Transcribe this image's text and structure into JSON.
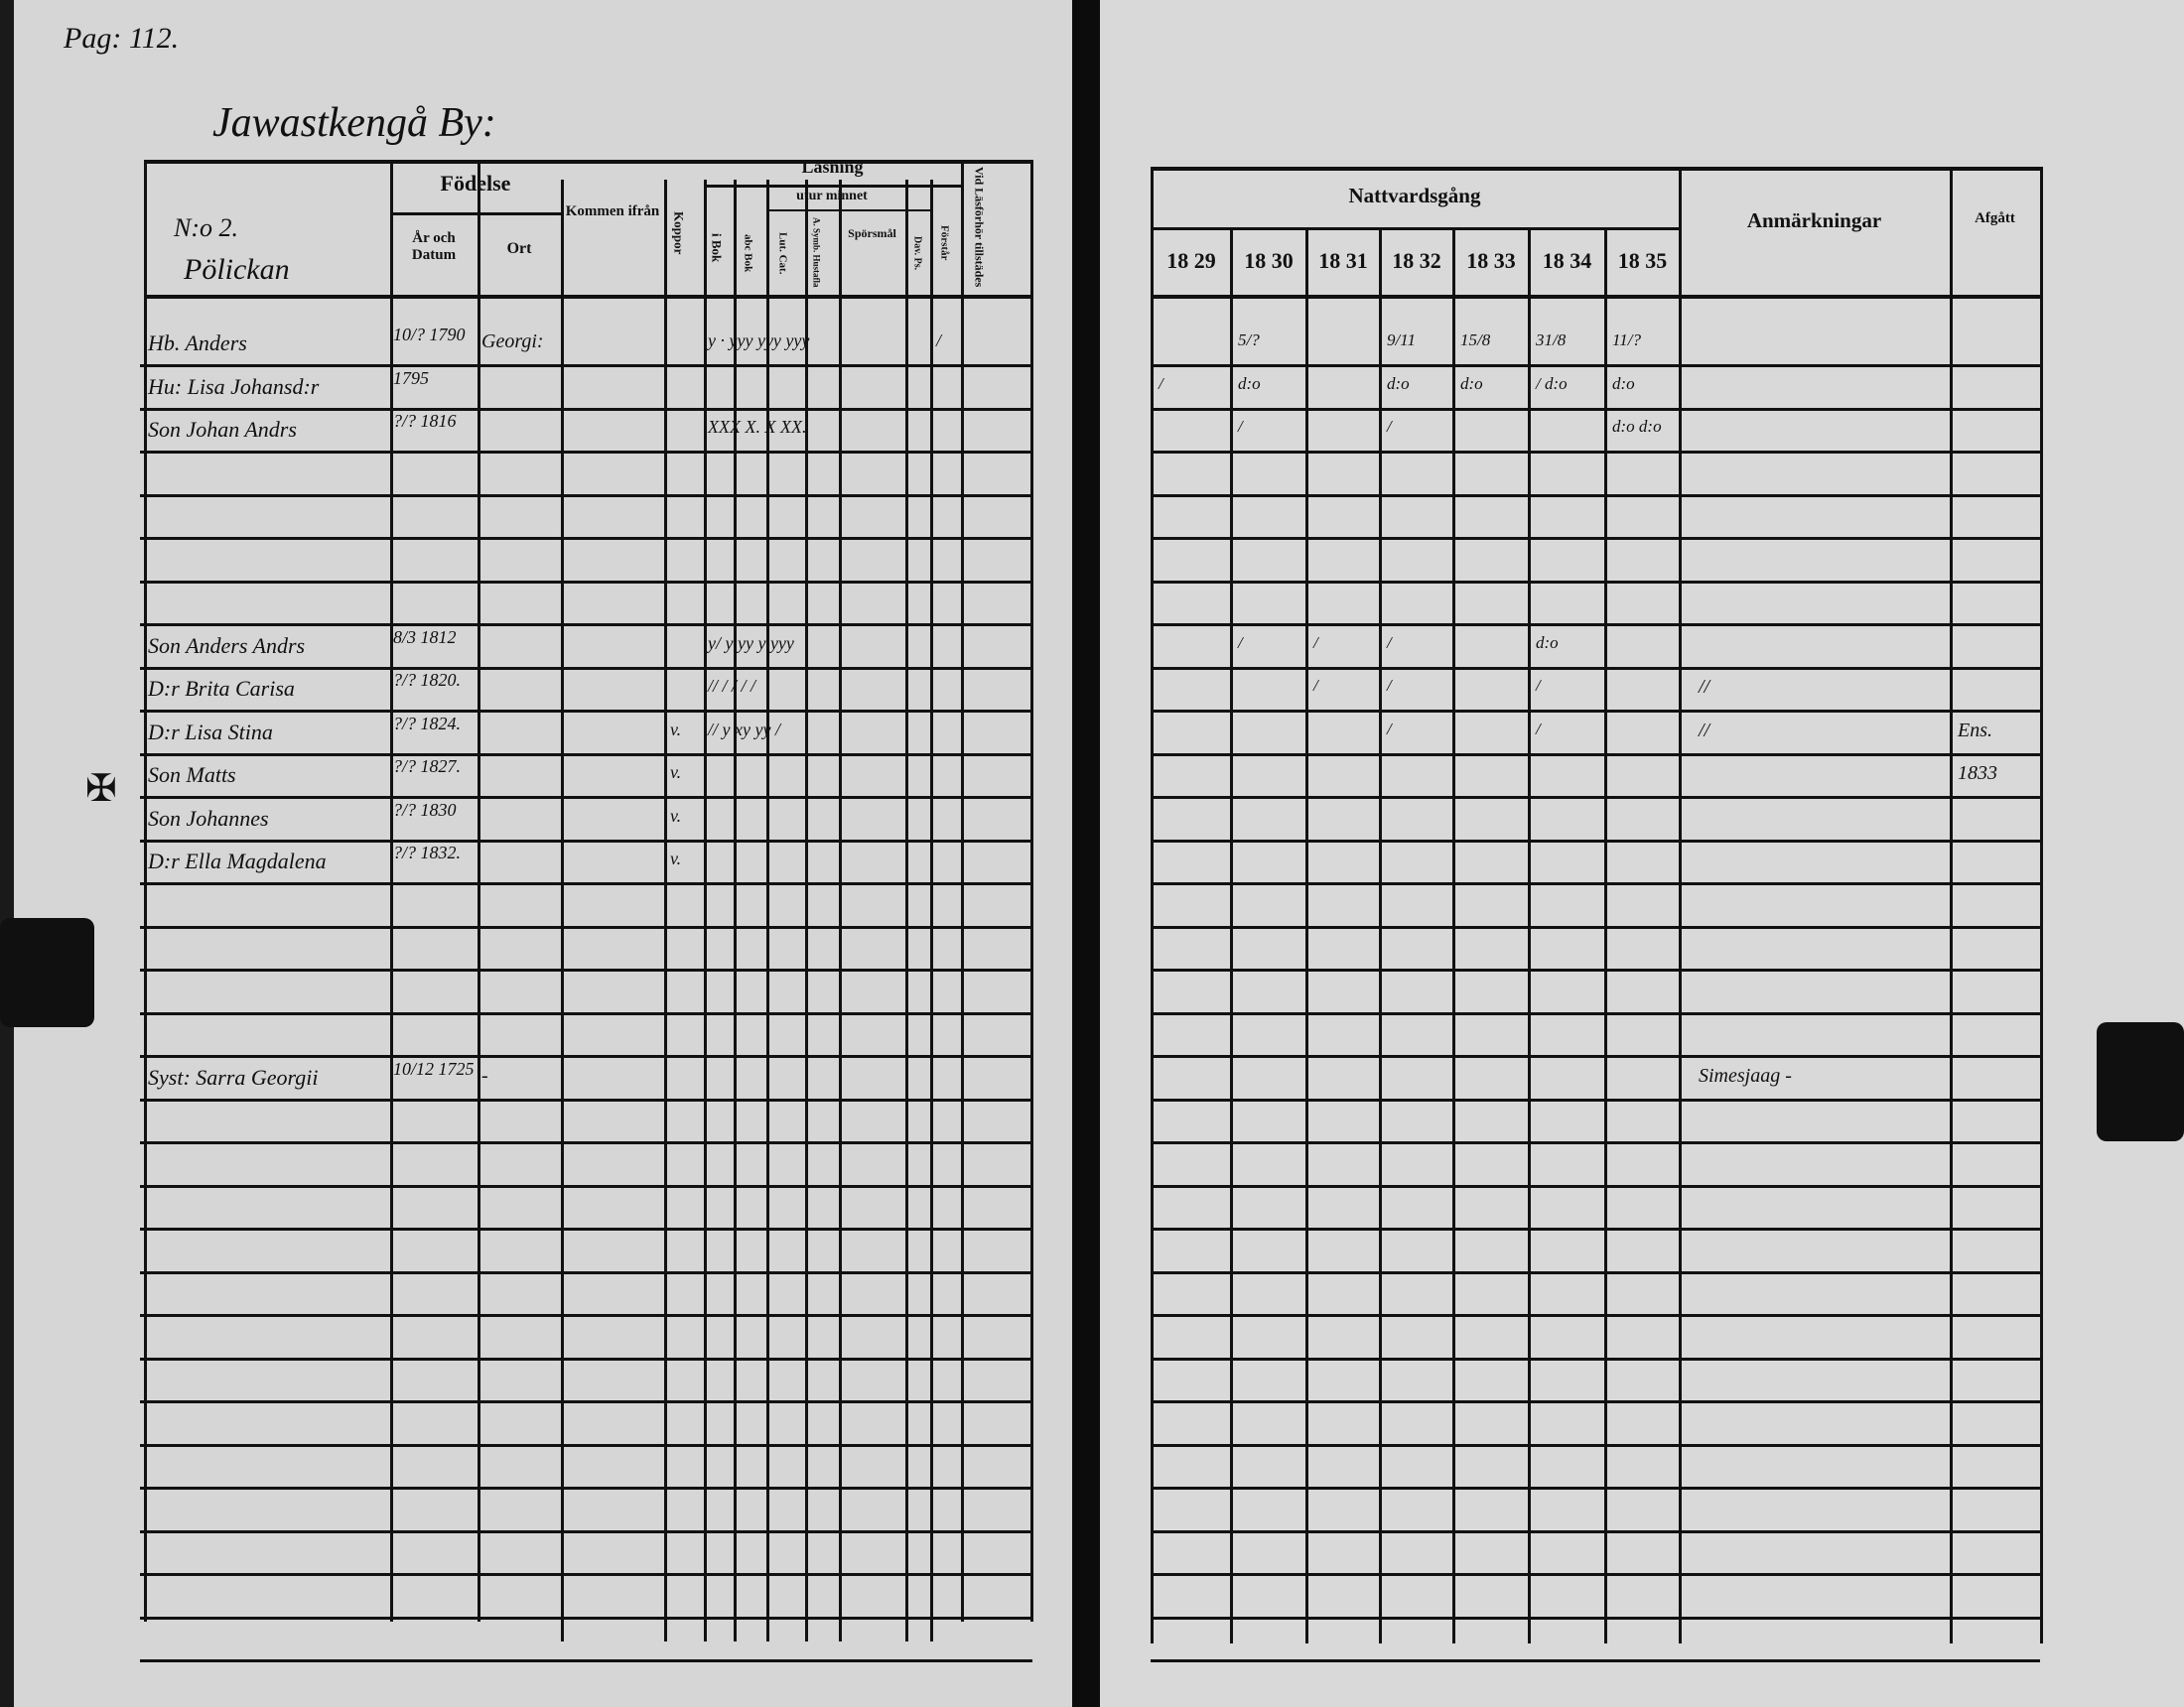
{
  "left_page": {
    "page_number": "Pag: 112.",
    "village_title": "Jawastkengå By:",
    "headers": {
      "names": [
        "N:o 2.",
        "Pölickan"
      ],
      "birth": "Födelse",
      "birth_date": "År och Datum",
      "birth_place": "Ort",
      "came_from": "Kommen ifrån",
      "smallpox": "Koppor",
      "reading": "Läsning",
      "by_heart": "utur minnet",
      "in_book": "i Bok",
      "abc_book": "abc Bok",
      "lut_cat": "Lut. Cat.",
      "symb": "A. Symb. Hustafla",
      "questions": "Spörsmål",
      "psalms": "Dav. Ps.",
      "understands": "Förstår",
      "attendance": "Vid Läsförhör tillstädes"
    },
    "margin_cross": "✠",
    "entries": [
      {
        "row": 0,
        "name": "Hb. Anders",
        "birth": "10/? 1790",
        "place": "Georgi:",
        "koppor": "",
        "reading": "y  ·  yyy yyy  yyy",
        "attendance": "/"
      },
      {
        "row": 1,
        "name": "Hu: Lisa Johansd:r",
        "birth": "1795",
        "place": "",
        "koppor": "",
        "reading": "",
        "attendance": ""
      },
      {
        "row": 2,
        "name": "Son Johan Andrs",
        "birth": "?/? 1816",
        "place": "",
        "koppor": "",
        "reading": "XXX  X.  X  XX.",
        "attendance": ""
      },
      {
        "row": 7,
        "name": "Son Anders Andrs",
        "birth": "8/3 1812",
        "place": "",
        "koppor": "",
        "reading": "y/  y  yy  y  yyy",
        "attendance": ""
      },
      {
        "row": 8,
        "name": "D:r Brita Carisa",
        "birth": "?/? 1820.",
        "place": "",
        "koppor": "",
        "reading": "//  / /  / /",
        "attendance": ""
      },
      {
        "row": 9,
        "name": "D:r Lisa Stina",
        "birth": "?/? 1824.",
        "place": "",
        "koppor": "v.",
        "reading": "//  y  xy  yy /",
        "attendance": ""
      },
      {
        "row": 10,
        "name": "Son Matts",
        "birth": "?/? 1827.",
        "place": "",
        "koppor": "v.",
        "reading": "",
        "attendance": ""
      },
      {
        "row": 11,
        "name": "Son Johannes",
        "birth": "?/? 1830",
        "place": "",
        "koppor": "v.",
        "reading": "",
        "attendance": ""
      },
      {
        "row": 12,
        "name": "D:r Ella Magdalena",
        "birth": "?/? 1832.",
        "place": "",
        "koppor": "v.",
        "reading": "",
        "attendance": ""
      },
      {
        "row": 17,
        "name": "Syst: Sarra Georgii",
        "birth": "10/12 1725",
        "place": "-",
        "koppor": "",
        "reading": "",
        "attendance": ""
      }
    ]
  },
  "right_page": {
    "headers": {
      "communion": "Nattvardsgång",
      "years": [
        "18 29",
        "18 30",
        "18 31",
        "18 32",
        "18 33",
        "18 34",
        "18 35"
      ],
      "remarks": "Anmärkningar",
      "departed": "Afgått"
    },
    "entries": [
      {
        "row": 0,
        "years": [
          "",
          "5/?",
          "",
          "9/11",
          "15/8",
          "31/8",
          "11/?"
        ],
        "remarks": "",
        "departed": ""
      },
      {
        "row": 1,
        "years": [
          "/",
          "d:o",
          "",
          "d:o",
          "d:o",
          "/ d:o",
          "d:o"
        ],
        "remarks": "",
        "departed": ""
      },
      {
        "row": 2,
        "years": [
          "",
          "/",
          "",
          "/",
          "",
          "",
          "d:o d:o"
        ],
        "remarks": "",
        "departed": ""
      },
      {
        "row": 7,
        "years": [
          "",
          "/",
          "/",
          "/",
          "",
          "d:o",
          ""
        ],
        "remarks": "",
        "departed": ""
      },
      {
        "row": 8,
        "years": [
          "",
          "",
          "/",
          "/",
          "",
          "/",
          ""
        ],
        "remarks": "//",
        "departed": ""
      },
      {
        "row": 9,
        "years": [
          "",
          "",
          "",
          "/",
          "",
          "/",
          ""
        ],
        "remarks": "//",
        "departed": "Ens."
      },
      {
        "row": 10,
        "years": [
          "",
          "",
          "",
          "",
          "",
          "",
          ""
        ],
        "remarks": "",
        "departed": "1833"
      },
      {
        "row": 17,
        "years": [
          "",
          "",
          "",
          "",
          "",
          "",
          ""
        ],
        "remarks": "Simesjaag -",
        "departed": ""
      }
    ]
  }
}
